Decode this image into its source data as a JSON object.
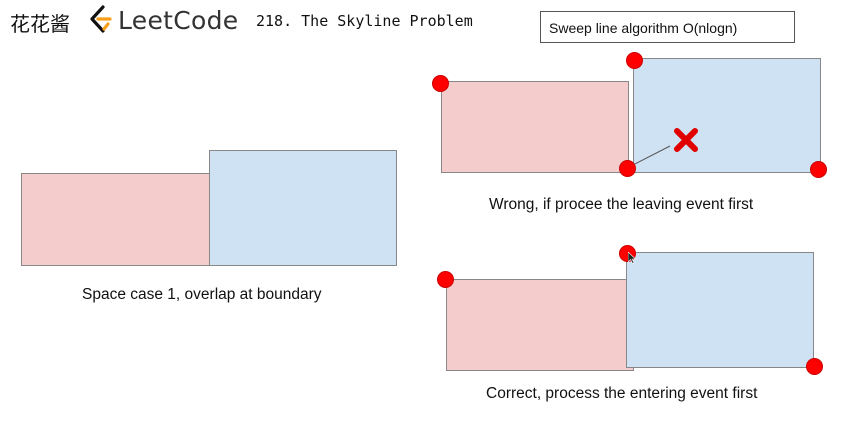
{
  "header": {
    "brand_cn": "花花酱",
    "brand_name": "LeetCode",
    "problem_title": "218. The Skyline Problem"
  },
  "algorithm_box": {
    "label": "Sweep line algorithm O(nlogn)"
  },
  "captions": {
    "case1": "Space case 1, overlap at boundary",
    "wrong": "Wrong, if procee the leaving event first",
    "correct": "Correct, process the entering event first"
  },
  "colors": {
    "left_building": "#f4cccc",
    "right_building": "#cfe2f3",
    "event_dot": "#ff0000",
    "wrong_mark": "#e00000",
    "logo_orange": "#f89f1b"
  },
  "icons": {
    "logo": "leetcode-logo-icon",
    "wrong": "x-mark-icon",
    "cursor": "mouse-cursor-icon"
  }
}
